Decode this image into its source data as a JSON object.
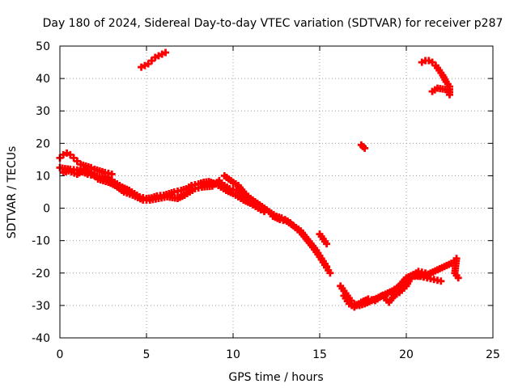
{
  "chart_data": {
    "type": "scatter",
    "title": "Day 180 of 2024, Sidereal Day-to-day VTEC variation (SDTVAR) for receiver p287",
    "xlabel": "GPS time / hours",
    "ylabel": "SDTVAR / TECUs",
    "xlim": [
      0,
      25
    ],
    "ylim": [
      -40,
      50
    ],
    "xticks": [
      0,
      5,
      10,
      15,
      20,
      25
    ],
    "yticks": [
      -40,
      -30,
      -20,
      -10,
      0,
      10,
      20,
      30,
      40,
      50
    ],
    "grid": true,
    "marker": "plus",
    "color": "#ff0000",
    "series": [
      {
        "name": "main-trend-upper",
        "points": [
          [
            0.0,
            12.5
          ],
          [
            0.3,
            12.2
          ],
          [
            0.6,
            12.0
          ],
          [
            1.0,
            11.8
          ],
          [
            1.3,
            11.2
          ],
          [
            1.6,
            10.5
          ],
          [
            2.0,
            10.0
          ],
          [
            2.3,
            9.8
          ],
          [
            2.6,
            9.5
          ],
          [
            3.0,
            8.5
          ],
          [
            3.3,
            7.5
          ],
          [
            3.6,
            6.5
          ],
          [
            4.0,
            5.5
          ],
          [
            4.3,
            4.5
          ],
          [
            4.6,
            3.5
          ],
          [
            5.0,
            3.0
          ],
          [
            5.3,
            3.2
          ],
          [
            5.6,
            3.8
          ],
          [
            6.0,
            4.0
          ],
          [
            6.3,
            4.5
          ],
          [
            6.6,
            5.0
          ],
          [
            7.0,
            5.5
          ],
          [
            7.3,
            6.0
          ],
          [
            7.6,
            7.0
          ],
          [
            8.0,
            7.5
          ],
          [
            8.3,
            8.0
          ],
          [
            8.6,
            8.2
          ],
          [
            9.0,
            7.5
          ],
          [
            9.3,
            6.5
          ],
          [
            9.6,
            5.5
          ],
          [
            10.0,
            4.5
          ],
          [
            10.3,
            3.5
          ],
          [
            10.6,
            2.5
          ],
          [
            11.0,
            1.5
          ],
          [
            11.3,
            0.5
          ],
          [
            11.6,
            -0.5
          ]
        ]
      },
      {
        "name": "main-trend-lower",
        "points": [
          [
            0.2,
            11.0
          ],
          [
            0.5,
            11.5
          ],
          [
            1.0,
            10.5
          ],
          [
            1.5,
            12.0
          ],
          [
            1.8,
            11.0
          ],
          [
            2.2,
            9.0
          ],
          [
            2.8,
            8.0
          ],
          [
            3.2,
            7.0
          ],
          [
            3.7,
            5.0
          ],
          [
            4.2,
            4.0
          ],
          [
            4.8,
            2.5
          ],
          [
            5.2,
            2.5
          ],
          [
            5.7,
            3.0
          ],
          [
            6.2,
            3.5
          ],
          [
            6.8,
            3.0
          ],
          [
            7.2,
            4.0
          ],
          [
            7.5,
            5.0
          ],
          [
            7.8,
            6.0
          ],
          [
            8.2,
            6.5
          ],
          [
            8.8,
            6.8
          ],
          [
            9.2,
            8.5
          ],
          [
            9.5,
            7.0
          ],
          [
            9.8,
            6.0
          ],
          [
            10.2,
            5.5
          ],
          [
            10.5,
            4.0
          ],
          [
            10.8,
            3.0
          ],
          [
            11.2,
            2.0
          ],
          [
            11.5,
            0.8
          ],
          [
            11.8,
            -1.0
          ]
        ]
      },
      {
        "name": "early-arc",
        "points": [
          [
            0.0,
            15.5
          ],
          [
            0.2,
            16.5
          ],
          [
            0.4,
            17.0
          ],
          [
            0.6,
            16.5
          ],
          [
            0.8,
            15.5
          ],
          [
            1.0,
            14.5
          ],
          [
            1.2,
            13.5
          ],
          [
            1.5,
            13.0
          ],
          [
            1.8,
            12.5
          ],
          [
            2.0,
            12.0
          ],
          [
            2.3,
            11.5
          ],
          [
            2.6,
            11.0
          ],
          [
            3.0,
            10.5
          ]
        ]
      },
      {
        "name": "afternoon-dip",
        "points": [
          [
            9.5,
            10.0
          ],
          [
            10.0,
            8.0
          ],
          [
            10.3,
            7.0
          ],
          [
            10.6,
            5.0
          ],
          [
            11.0,
            3.0
          ],
          [
            11.4,
            1.5
          ],
          [
            11.8,
            0.0
          ],
          [
            12.2,
            -1.5
          ],
          [
            12.5,
            -2.5
          ],
          [
            12.8,
            -3.0
          ],
          [
            13.0,
            -3.5
          ],
          [
            13.3,
            -4.5
          ],
          [
            13.6,
            -6.0
          ],
          [
            14.0,
            -8.0
          ],
          [
            14.3,
            -10.0
          ],
          [
            14.6,
            -12.0
          ],
          [
            15.0,
            -15.0
          ],
          [
            15.3,
            -17.5
          ],
          [
            15.6,
            -20.0
          ]
        ]
      },
      {
        "name": "afternoon-dip-2",
        "points": [
          [
            12.3,
            -2.5
          ],
          [
            12.7,
            -3.5
          ],
          [
            13.1,
            -4.0
          ],
          [
            13.5,
            -5.5
          ],
          [
            13.9,
            -7.0
          ],
          [
            14.2,
            -9.0
          ],
          [
            14.5,
            -11.0
          ],
          [
            14.8,
            -13.0
          ],
          [
            15.1,
            -15.5
          ],
          [
            15.4,
            -18.0
          ],
          [
            15.0,
            -8.0
          ],
          [
            15.2,
            -9.5
          ],
          [
            15.4,
            -11.0
          ]
        ]
      },
      {
        "name": "trough",
        "points": [
          [
            16.2,
            -24.0
          ],
          [
            16.4,
            -25.5
          ],
          [
            16.6,
            -27.0
          ],
          [
            16.8,
            -28.5
          ],
          [
            17.0,
            -29.5
          ],
          [
            17.3,
            -30.0
          ],
          [
            17.6,
            -29.5
          ],
          [
            18.0,
            -28.5
          ],
          [
            18.4,
            -27.5
          ],
          [
            18.8,
            -26.5
          ],
          [
            19.2,
            -25.5
          ],
          [
            19.6,
            -24.0
          ],
          [
            20.0,
            -21.5
          ],
          [
            20.4,
            -20.5
          ],
          [
            20.8,
            -21.0
          ],
          [
            21.2,
            -21.5
          ],
          [
            21.6,
            -22.0
          ],
          [
            22.0,
            -22.5
          ]
        ]
      },
      {
        "name": "trough-2",
        "points": [
          [
            16.4,
            -27.0
          ],
          [
            16.7,
            -29.5
          ],
          [
            17.0,
            -30.5
          ],
          [
            17.4,
            -29.0
          ],
          [
            17.8,
            -28.0
          ],
          [
            18.2,
            -28.5
          ],
          [
            18.6,
            -27.0
          ],
          [
            19.0,
            -29.0
          ],
          [
            19.3,
            -27.0
          ],
          [
            19.6,
            -26.0
          ],
          [
            20.0,
            -24.0
          ],
          [
            20.3,
            -21.0
          ],
          [
            20.7,
            -19.5
          ],
          [
            21.1,
            -20.0
          ]
        ]
      },
      {
        "name": "late-rise",
        "points": [
          [
            20.5,
            -21.0
          ],
          [
            21.0,
            -21.0
          ],
          [
            21.4,
            -20.0
          ],
          [
            21.8,
            -19.0
          ],
          [
            22.2,
            -18.0
          ],
          [
            22.6,
            -17.0
          ],
          [
            22.9,
            -15.5
          ],
          [
            22.8,
            -20.0
          ],
          [
            23.0,
            -21.5
          ]
        ]
      },
      {
        "name": "morning-island",
        "points": [
          [
            4.7,
            43.5
          ],
          [
            4.9,
            44.0
          ],
          [
            5.1,
            44.5
          ],
          [
            5.3,
            45.5
          ],
          [
            5.5,
            46.5
          ],
          [
            5.7,
            47.0
          ],
          [
            5.9,
            47.5
          ],
          [
            6.1,
            48.0
          ]
        ]
      },
      {
        "name": "evening-island",
        "points": [
          [
            20.9,
            45.0
          ],
          [
            21.1,
            45.5
          ],
          [
            21.3,
            45.5
          ],
          [
            21.5,
            45.0
          ],
          [
            21.7,
            44.0
          ],
          [
            21.9,
            42.5
          ],
          [
            22.1,
            41.0
          ],
          [
            22.3,
            39.0
          ],
          [
            22.5,
            37.5
          ],
          [
            22.5,
            35.0
          ],
          [
            22.4,
            36.5
          ],
          [
            21.8,
            37.0
          ],
          [
            21.5,
            36.0
          ]
        ]
      },
      {
        "name": "isolated-point",
        "points": [
          [
            17.4,
            19.5
          ],
          [
            17.5,
            19.0
          ],
          [
            17.6,
            18.5
          ]
        ]
      }
    ]
  }
}
